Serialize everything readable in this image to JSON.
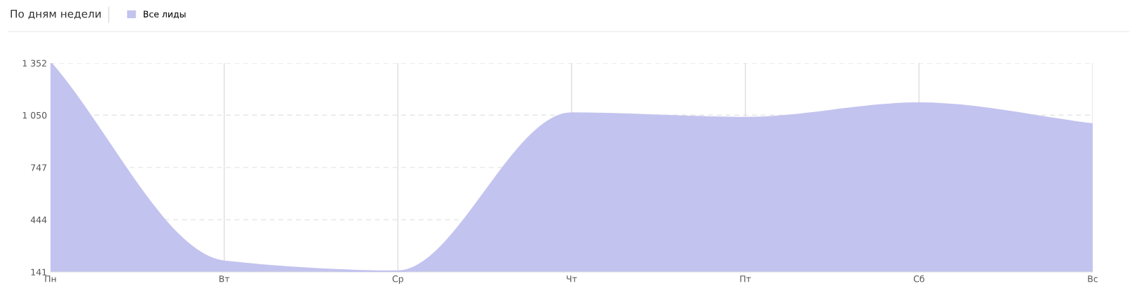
{
  "chart_data": {
    "type": "area",
    "title": "По дням недели",
    "categories": [
      "Пн",
      "Вт",
      "Ср",
      "Чт",
      "Пт",
      "Сб",
      "Вс"
    ],
    "series": [
      {
        "name": "Все лиды",
        "color": "#c3c3ef",
        "values": [
          1352,
          200,
          143,
          1059,
          1033,
          1117,
          996
        ]
      }
    ],
    "ylim": [
      141,
      1352
    ],
    "yticks": [
      141,
      444,
      747,
      {
        "value": 1050,
        "label": "1 050"
      },
      {
        "value": 1352,
        "label": "1 352"
      }
    ],
    "grid": true,
    "legend": "top left"
  }
}
